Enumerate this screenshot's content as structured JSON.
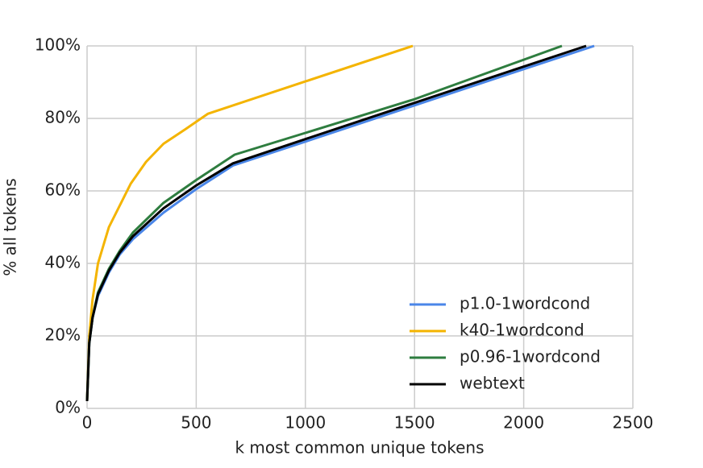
{
  "chart_data": {
    "type": "line",
    "xlabel": "k most common unique tokens",
    "ylabel": "% all tokens",
    "xlim": [
      0,
      2500
    ],
    "xticks": [
      0,
      500,
      1000,
      1500,
      2000,
      2500
    ],
    "ylim": [
      0,
      100
    ],
    "yticks": [
      {
        "value": 0,
        "label": "0%"
      },
      {
        "value": 20,
        "label": "20%"
      },
      {
        "value": 40,
        "label": "40%"
      },
      {
        "value": 60,
        "label": "60%"
      },
      {
        "value": 80,
        "label": "80%"
      },
      {
        "value": 100,
        "label": "100%"
      }
    ],
    "grid": true,
    "legend": "lower right",
    "series": [
      {
        "name": "p1.0-1wordcond",
        "color": "#4a86e8",
        "x": [
          0,
          10,
          25,
          50,
          100,
          150,
          210,
          350,
          500,
          668,
          1000,
          1500,
          2000,
          2323
        ],
        "values": [
          2,
          18,
          25,
          31,
          37.5,
          42.5,
          46.7,
          54,
          60.5,
          67,
          73.6,
          83.6,
          93.6,
          100
        ]
      },
      {
        "name": "k40-1wordcond",
        "color": "#f4b400",
        "x": [
          0,
          10,
          25,
          50,
          100,
          150,
          200,
          270,
          350,
          450,
          554,
          1000,
          1492
        ],
        "values": [
          2,
          20,
          30,
          40,
          50,
          56,
          62,
          68,
          73,
          77,
          81.3,
          90.2,
          100
        ]
      },
      {
        "name": "p0.96-1wordcond",
        "color": "#2e7d3f",
        "x": [
          0,
          10,
          25,
          50,
          100,
          150,
          210,
          350,
          500,
          676,
          1000,
          1500,
          2175
        ],
        "values": [
          2,
          18,
          25,
          32,
          38.5,
          43.5,
          48.5,
          56.7,
          63,
          70,
          76,
          85.3,
          100
        ]
      },
      {
        "name": "webtext",
        "color": "#000000",
        "x": [
          0,
          10,
          25,
          50,
          100,
          150,
          210,
          350,
          500,
          668,
          1000,
          1500,
          2000,
          2286
        ],
        "values": [
          2,
          18,
          25,
          31.5,
          38,
          43,
          47.5,
          55.2,
          61.5,
          67.6,
          74.3,
          84.3,
          94.3,
          100
        ]
      }
    ]
  }
}
